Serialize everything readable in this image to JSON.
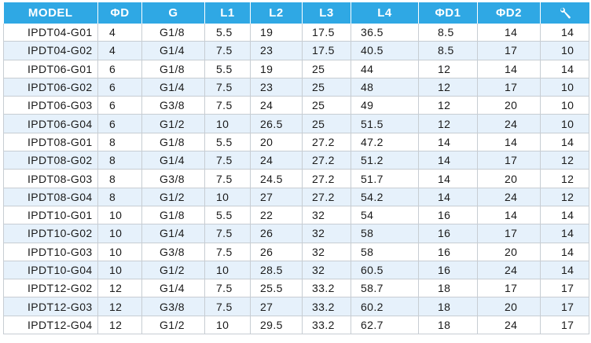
{
  "columns": [
    "MODEL",
    "ΦD",
    "G",
    "L1",
    "L2",
    "L3",
    "L4",
    "ΦD1",
    "ΦD2",
    ""
  ],
  "last_column_icon": "wrench-icon",
  "colors": {
    "header_bg": "#2fa8e4",
    "stripe": "#e6f1fb",
    "text": "#1a1a1a"
  },
  "rows": [
    [
      "IPDT04-G01",
      "4",
      "G1/8",
      "5.5",
      "19",
      "17.5",
      "36.5",
      "8.5",
      "14",
      "14"
    ],
    [
      "IPDT04-G02",
      "4",
      "G1/4",
      "7.5",
      "23",
      "17.5",
      "40.5",
      "8.5",
      "17",
      "10"
    ],
    [
      "IPDT06-G01",
      "6",
      "G1/8",
      "5.5",
      "19",
      "25",
      "44",
      "12",
      "14",
      "14"
    ],
    [
      "IPDT06-G02",
      "6",
      "G1/4",
      "7.5",
      "23",
      "25",
      "48",
      "12",
      "17",
      "10"
    ],
    [
      "IPDT06-G03",
      "6",
      "G3/8",
      "7.5",
      "24",
      "25",
      "49",
      "12",
      "20",
      "10"
    ],
    [
      "IPDT06-G04",
      "6",
      "G1/2",
      "10",
      "26.5",
      "25",
      "51.5",
      "12",
      "24",
      "10"
    ],
    [
      "IPDT08-G01",
      "8",
      "G1/8",
      "5.5",
      "20",
      "27.2",
      "47.2",
      "14",
      "14",
      "14"
    ],
    [
      "IPDT08-G02",
      "8",
      "G1/4",
      "7.5",
      "24",
      "27.2",
      "51.2",
      "14",
      "17",
      "12"
    ],
    [
      "IPDT08-G03",
      "8",
      "G3/8",
      "7.5",
      "24.5",
      "27.2",
      "51.7",
      "14",
      "20",
      "12"
    ],
    [
      "IPDT08-G04",
      "8",
      "G1/2",
      "10",
      "27",
      "27.2",
      "54.2",
      "14",
      "24",
      "12"
    ],
    [
      "IPDT10-G01",
      "10",
      "G1/8",
      "5.5",
      "22",
      "32",
      "54",
      "16",
      "14",
      "14"
    ],
    [
      "IPDT10-G02",
      "10",
      "G1/4",
      "7.5",
      "26",
      "32",
      "58",
      "16",
      "17",
      "14"
    ],
    [
      "IPDT10-G03",
      "10",
      "G3/8",
      "7.5",
      "26",
      "32",
      "58",
      "16",
      "20",
      "14"
    ],
    [
      "IPDT10-G04",
      "10",
      "G1/2",
      "10",
      "28.5",
      "32",
      "60.5",
      "16",
      "24",
      "14"
    ],
    [
      "IPDT12-G02",
      "12",
      "G1/4",
      "7.5",
      "25.5",
      "33.2",
      "58.7",
      "18",
      "17",
      "17"
    ],
    [
      "IPDT12-G03",
      "12",
      "G3/8",
      "7.5",
      "27",
      "33.2",
      "60.2",
      "18",
      "20",
      "17"
    ],
    [
      "IPDT12-G04",
      "12",
      "G1/2",
      "10",
      "29.5",
      "33.2",
      "62.7",
      "18",
      "24",
      "17"
    ]
  ]
}
